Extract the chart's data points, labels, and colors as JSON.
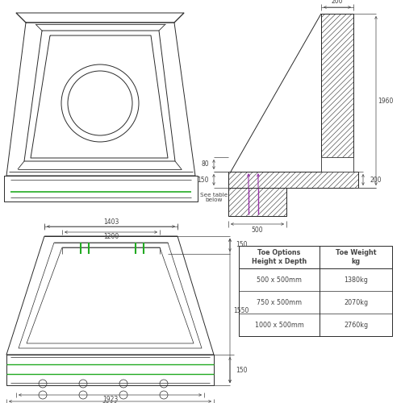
{
  "bg_color": "#ffffff",
  "line_color": "#2a2a2a",
  "green_color": "#22aa22",
  "purple_color": "#9933aa",
  "dim_color": "#444444",
  "table": {
    "headers": [
      "Toe Options\nHeight x Depth",
      "Toe Weight\nkg"
    ],
    "rows": [
      [
        "500 x 500mm",
        "1380kg"
      ],
      [
        "750 x 500mm",
        "2070kg"
      ],
      [
        "1000 x 500mm",
        "2760kg"
      ]
    ]
  }
}
